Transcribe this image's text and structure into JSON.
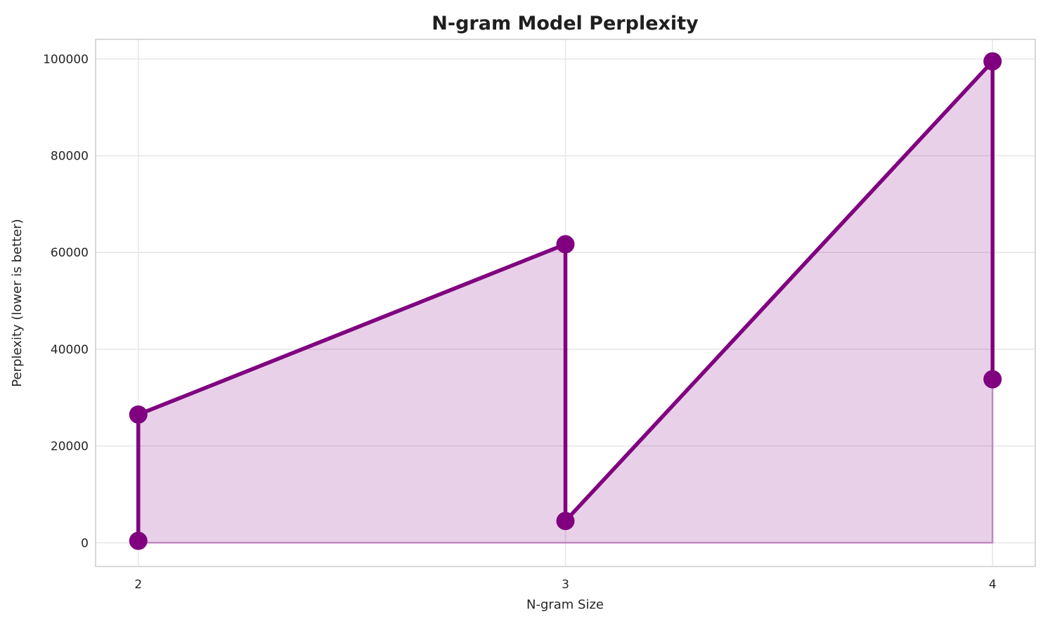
{
  "title": "N-gram Model Perplexity",
  "axes": {
    "xlabel": "N-gram Size",
    "ylabel": "Perplexity (lower is better)"
  },
  "colors": {
    "line": "#800080",
    "marker": "#800080",
    "fill": "#800080",
    "fill_opacity": 0.18,
    "fill_edge_opacity": 0.35,
    "grid": "#e7e7e7",
    "frame": "#cccccc",
    "text": "#262626",
    "title_text": "#1f1f1f",
    "background": "#ffffff"
  },
  "chart_data": {
    "type": "line",
    "title": "N-gram Model Perplexity",
    "xlabel": "N-gram Size",
    "ylabel": "Perplexity (lower is better)",
    "x": [
      2,
      2,
      3,
      3,
      4,
      4
    ],
    "y": [
      400,
      26500,
      61700,
      4500,
      99500,
      33800
    ],
    "points": [
      {
        "x": 2,
        "y": 400
      },
      {
        "x": 2,
        "y": 26500
      },
      {
        "x": 3,
        "y": 61700
      },
      {
        "x": 3,
        "y": 4500
      },
      {
        "x": 4,
        "y": 99500
      },
      {
        "x": 4,
        "y": 33800
      }
    ],
    "x_ticks": [
      2,
      3,
      4
    ],
    "y_ticks": [
      0,
      20000,
      40000,
      60000,
      80000,
      100000
    ],
    "xlim": [
      1.9,
      4.1
    ],
    "ylim": [
      -4900,
      104050
    ],
    "grid": true,
    "legend": false,
    "area_fill": true,
    "fill_baseline": 0,
    "markers": true
  }
}
